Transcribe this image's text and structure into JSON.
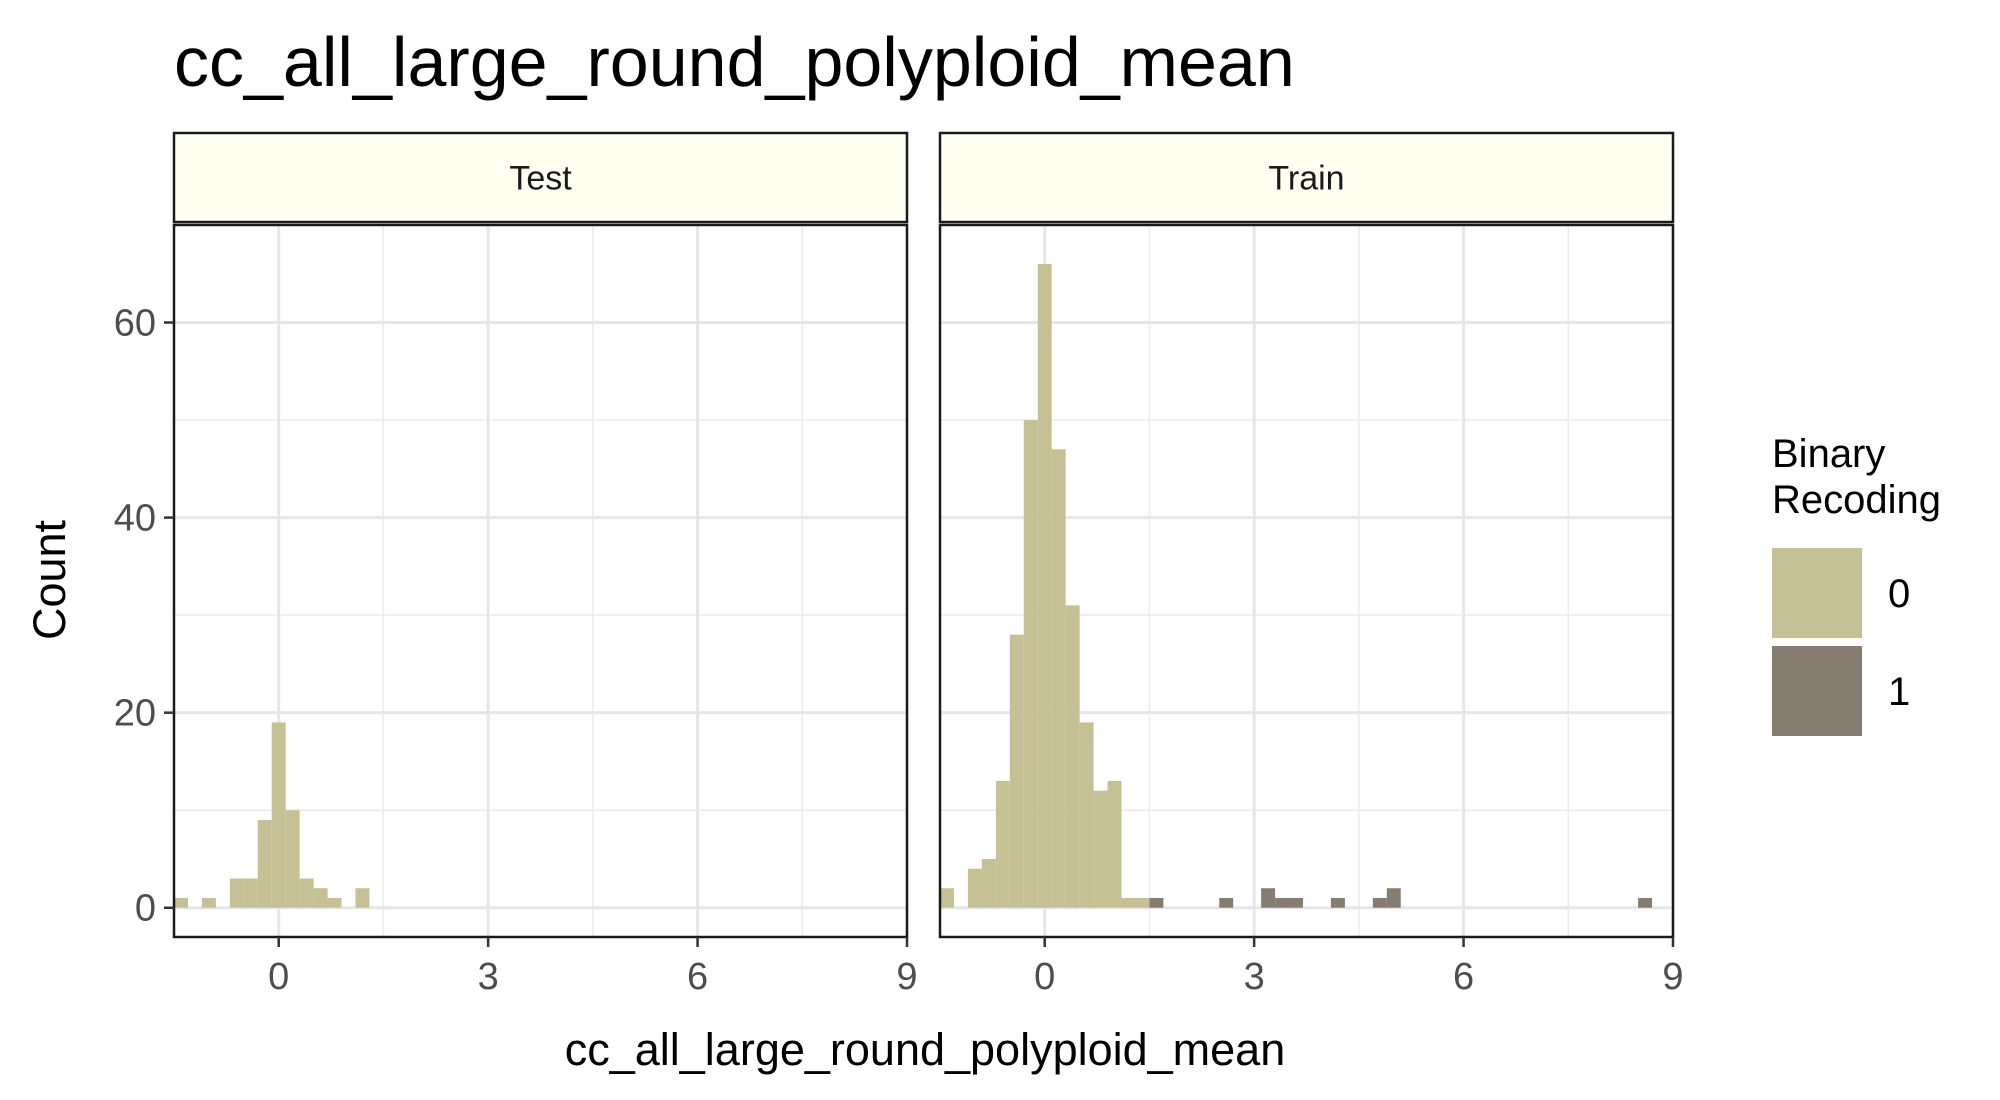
{
  "chart_data": {
    "type": "bar",
    "title": "cc_all_large_round_polyploid_mean",
    "xlabel": "cc_all_large_round_polyploid_mean",
    "ylabel": "Count",
    "xlim": [
      -1.5,
      9.0
    ],
    "ylim": [
      -3,
      70
    ],
    "x_ticks": [
      0,
      3,
      6,
      9
    ],
    "y_ticks": [
      0,
      20,
      40,
      60
    ],
    "bin_width": 0.2,
    "grid": true,
    "legend": {
      "title": [
        "Binary",
        "Recoding"
      ],
      "placement": "right",
      "entries": [
        {
          "label": "0",
          "color": "#c6c097"
        },
        {
          "label": "1",
          "color": "#857d72"
        }
      ]
    },
    "facets": [
      {
        "label": "Test",
        "series": [
          {
            "name": "0",
            "bins": [
              {
                "x": -1.4,
                "count": 1
              },
              {
                "x": -1.0,
                "count": 1
              },
              {
                "x": -0.6,
                "count": 3
              },
              {
                "x": -0.4,
                "count": 3
              },
              {
                "x": -0.2,
                "count": 9
              },
              {
                "x": 0.0,
                "count": 19
              },
              {
                "x": 0.2,
                "count": 10
              },
              {
                "x": 0.4,
                "count": 3
              },
              {
                "x": 0.6,
                "count": 2
              },
              {
                "x": 0.8,
                "count": 1
              },
              {
                "x": 1.2,
                "count": 2
              }
            ]
          },
          {
            "name": "1",
            "bins": []
          }
        ]
      },
      {
        "label": "Train",
        "series": [
          {
            "name": "0",
            "bins": [
              {
                "x": -1.4,
                "count": 2
              },
              {
                "x": -1.0,
                "count": 4
              },
              {
                "x": -0.8,
                "count": 5
              },
              {
                "x": -0.6,
                "count": 13
              },
              {
                "x": -0.4,
                "count": 28
              },
              {
                "x": -0.2,
                "count": 50
              },
              {
                "x": 0.0,
                "count": 66
              },
              {
                "x": 0.2,
                "count": 47
              },
              {
                "x": 0.4,
                "count": 31
              },
              {
                "x": 0.6,
                "count": 19
              },
              {
                "x": 0.8,
                "count": 12
              },
              {
                "x": 1.0,
                "count": 13
              },
              {
                "x": 1.2,
                "count": 1
              },
              {
                "x": 1.4,
                "count": 1
              }
            ]
          },
          {
            "name": "1",
            "bins": [
              {
                "x": 1.6,
                "count": 1
              },
              {
                "x": 2.6,
                "count": 1
              },
              {
                "x": 3.2,
                "count": 2
              },
              {
                "x": 3.4,
                "count": 1
              },
              {
                "x": 3.6,
                "count": 1
              },
              {
                "x": 4.2,
                "count": 1
              },
              {
                "x": 4.8,
                "count": 1
              },
              {
                "x": 5.0,
                "count": 2
              },
              {
                "x": 8.6,
                "count": 1
              }
            ]
          }
        ]
      }
    ]
  }
}
